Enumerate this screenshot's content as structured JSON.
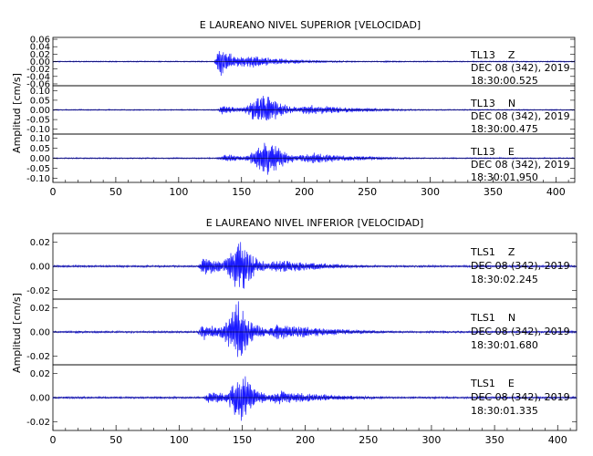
{
  "chart_data": [
    {
      "type": "line",
      "title": "E LAUREANO NIVEL SUPERIOR [VELOCIDAD]",
      "ylabel": "Amplitud [cm/s]",
      "xlim": [
        0,
        415
      ],
      "x_ticks": [
        "0",
        "50",
        "100",
        "150",
        "200",
        "250",
        "300",
        "350",
        "400"
      ],
      "x_tick_values": [
        0,
        50,
        100,
        150,
        200,
        250,
        300,
        350,
        400
      ],
      "line_color": "#1a1aff",
      "traces": [
        {
          "station": "TL13",
          "component": "Z",
          "date": "DEC 08 (342), 2019",
          "time": "18:30:00.525",
          "ylim": [
            -0.065,
            0.065
          ],
          "y_ticks": [
            "0.06",
            "0.04",
            "0.02",
            "0.00",
            "-0.02",
            "-0.04",
            "-0.06"
          ],
          "y_tick_values": [
            0.06,
            0.04,
            0.02,
            0.0,
            -0.02,
            -0.04,
            -0.06
          ],
          "noise": 0.0015,
          "envelope": [
            {
              "x": 133,
              "peak": 0.045,
              "rise": 3,
              "decay": 12
            },
            {
              "x": 155,
              "peak": 0.02,
              "rise": 8,
              "decay": 30
            },
            {
              "x": 188,
              "peak": 0.006,
              "rise": 10,
              "decay": 40
            },
            {
              "x": 265,
              "peak": 0.003,
              "rise": 3,
              "decay": 6
            }
          ]
        },
        {
          "station": "TL13",
          "component": "N",
          "date": "DEC 08 (342), 2019",
          "time": "18:30:00.475",
          "ylim": [
            -0.125,
            0.125
          ],
          "y_ticks": [
            "0.10",
            "0.05",
            "0.00",
            "-0.05",
            "-0.10"
          ],
          "y_tick_values": [
            0.1,
            0.05,
            0.0,
            -0.05,
            -0.1
          ],
          "noise": 0.003,
          "envelope": [
            {
              "x": 135,
              "peak": 0.025,
              "rise": 3,
              "decay": 15
            },
            {
              "x": 168,
              "peak": 0.095,
              "rise": 12,
              "decay": 14
            },
            {
              "x": 205,
              "peak": 0.03,
              "rise": 10,
              "decay": 40
            }
          ]
        },
        {
          "station": "TL13",
          "component": "E",
          "date": "DEC 08 (342), 2019",
          "time": "18:30:01.950",
          "ylim": [
            -0.12,
            0.12
          ],
          "y_ticks": [
            "0.10",
            "0.05",
            "0.00",
            "-0.05",
            "-0.10"
          ],
          "y_tick_values": [
            0.1,
            0.05,
            0.0,
            -0.05,
            -0.1
          ],
          "noise": 0.003,
          "envelope": [
            {
              "x": 140,
              "peak": 0.02,
              "rise": 8,
              "decay": 20
            },
            {
              "x": 173,
              "peak": 0.095,
              "rise": 14,
              "decay": 12
            },
            {
              "x": 205,
              "peak": 0.03,
              "rise": 10,
              "decay": 40
            }
          ]
        }
      ]
    },
    {
      "type": "line",
      "title": "E LAUREANO NIVEL INFERIOR [VELOCIDAD]",
      "ylabel": "Amplitud [cm/s]",
      "xlim": [
        0,
        415
      ],
      "x_ticks": [
        "0",
        "50",
        "100",
        "150",
        "200",
        "250",
        "300",
        "350",
        "400"
      ],
      "x_tick_values": [
        0,
        50,
        100,
        150,
        200,
        250,
        300,
        350,
        400
      ],
      "line_color": "#1a1aff",
      "traces": [
        {
          "station": "TLS1",
          "component": "Z",
          "date": "DEC 08 (342), 2019",
          "time": "18:30:02.245",
          "ylim": [
            -0.027,
            0.027
          ],
          "y_ticks": [
            "0.02",
            "0.00",
            "-0.02"
          ],
          "y_tick_values": [
            0.02,
            0.0,
            -0.02
          ],
          "noise": 0.0008,
          "envelope": [
            {
              "x": 120,
              "peak": 0.008,
              "rise": 4,
              "decay": 20
            },
            {
              "x": 150,
              "peak": 0.023,
              "rise": 12,
              "decay": 10
            },
            {
              "x": 180,
              "peak": 0.006,
              "rise": 10,
              "decay": 40
            }
          ]
        },
        {
          "station": "TLS1",
          "component": "N",
          "date": "DEC 08 (342), 2019",
          "time": "18:30:01.680",
          "ylim": [
            -0.027,
            0.027
          ],
          "y_ticks": [
            "0.02",
            "0.00",
            "-0.02"
          ],
          "y_tick_values": [
            0.02,
            0.0,
            -0.02
          ],
          "noise": 0.0008,
          "envelope": [
            {
              "x": 120,
              "peak": 0.007,
              "rise": 4,
              "decay": 20
            },
            {
              "x": 148,
              "peak": 0.026,
              "rise": 12,
              "decay": 10
            },
            {
              "x": 180,
              "peak": 0.007,
              "rise": 10,
              "decay": 45
            }
          ]
        },
        {
          "station": "TLS1",
          "component": "E",
          "date": "DEC 08 (342), 2019",
          "time": "18:30:01.335",
          "ylim": [
            -0.027,
            0.027
          ],
          "y_ticks": [
            "0.02",
            "0.00",
            "-0.02"
          ],
          "y_tick_values": [
            0.02,
            0.0,
            -0.02
          ],
          "noise": 0.0008,
          "envelope": [
            {
              "x": 125,
              "peak": 0.006,
              "rise": 4,
              "decay": 20
            },
            {
              "x": 150,
              "peak": 0.023,
              "rise": 10,
              "decay": 10
            },
            {
              "x": 180,
              "peak": 0.006,
              "rise": 10,
              "decay": 45
            }
          ]
        }
      ]
    }
  ]
}
